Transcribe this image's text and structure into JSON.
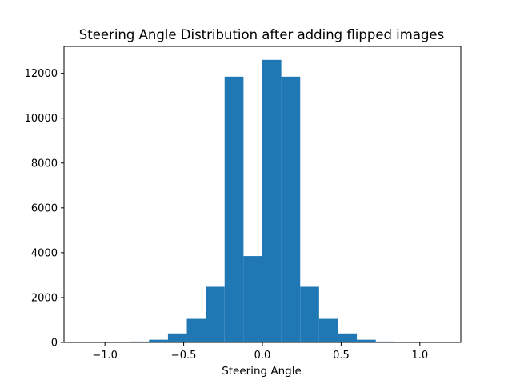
{
  "chart_data": {
    "type": "bar",
    "title": "Steering Angle Distribution after adding flipped images",
    "xlabel": "Steering Angle",
    "ylabel": "",
    "bar_color": "#1f77b4",
    "xlim": [
      -1.26,
      1.26
    ],
    "ylim": [
      0,
      13200
    ],
    "x_ticks": [
      {
        "value": -1.0,
        "label": "−1.0"
      },
      {
        "value": -0.5,
        "label": "−0.5"
      },
      {
        "value": 0.0,
        "label": "0.0"
      },
      {
        "value": 0.5,
        "label": "0.5"
      },
      {
        "value": 1.0,
        "label": "1.0"
      }
    ],
    "y_ticks": [
      {
        "value": 0,
        "label": "0"
      },
      {
        "value": 2000,
        "label": "2000"
      },
      {
        "value": 4000,
        "label": "4000"
      },
      {
        "value": 6000,
        "label": "6000"
      },
      {
        "value": 8000,
        "label": "8000"
      },
      {
        "value": 10000,
        "label": "10000"
      },
      {
        "value": 12000,
        "label": "12000"
      }
    ],
    "bins": [
      {
        "x0": -1.2,
        "x1": -1.08,
        "value": 2
      },
      {
        "x0": -1.08,
        "x1": -0.96,
        "value": 4
      },
      {
        "x0": -0.96,
        "x1": -0.84,
        "value": 8
      },
      {
        "x0": -0.84,
        "x1": -0.72,
        "value": 40
      },
      {
        "x0": -0.72,
        "x1": -0.6,
        "value": 120
      },
      {
        "x0": -0.6,
        "x1": -0.48,
        "value": 400
      },
      {
        "x0": -0.48,
        "x1": -0.36,
        "value": 1050
      },
      {
        "x0": -0.36,
        "x1": -0.24,
        "value": 2480
      },
      {
        "x0": -0.24,
        "x1": -0.12,
        "value": 11850
      },
      {
        "x0": -0.12,
        "x1": 0.0,
        "value": 3850
      },
      {
        "x0": 0.0,
        "x1": 0.12,
        "value": 12600
      },
      {
        "x0": 0.12,
        "x1": 0.24,
        "value": 11850
      },
      {
        "x0": 0.24,
        "x1": 0.36,
        "value": 2480
      },
      {
        "x0": 0.36,
        "x1": 0.48,
        "value": 1050
      },
      {
        "x0": 0.48,
        "x1": 0.6,
        "value": 400
      },
      {
        "x0": 0.6,
        "x1": 0.72,
        "value": 120
      },
      {
        "x0": 0.72,
        "x1": 0.84,
        "value": 40
      },
      {
        "x0": 0.84,
        "x1": 0.96,
        "value": 8
      },
      {
        "x0": 0.96,
        "x1": 1.08,
        "value": 4
      },
      {
        "x0": 1.08,
        "x1": 1.2,
        "value": 2
      }
    ]
  }
}
